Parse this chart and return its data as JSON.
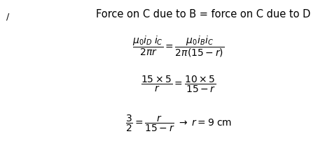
{
  "title": "Force on C due to B = force on C due to D",
  "bg_color": "#ffffff",
  "text_color": "#000000",
  "title_fontsize": 10.5,
  "eq_fontsize": 10,
  "marker": "/"
}
